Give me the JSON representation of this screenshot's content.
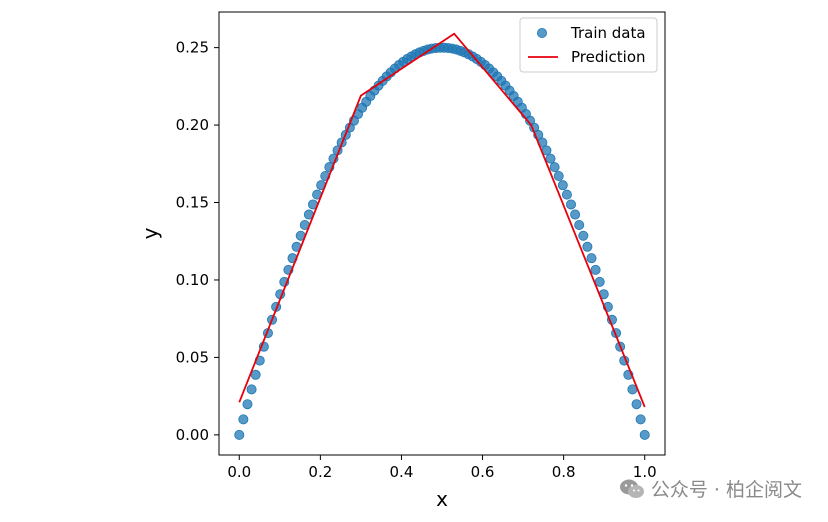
{
  "chart_data": {
    "type": "scatter",
    "xlabel": "x",
    "ylabel": "y",
    "xlim": [
      -0.05,
      1.05
    ],
    "ylim": [
      -0.013,
      0.273
    ],
    "xticks": [
      0.0,
      0.2,
      0.4,
      0.6,
      0.8,
      1.0
    ],
    "xtick_labels": [
      "0.0",
      "0.2",
      "0.4",
      "0.6",
      "0.8",
      "1.0"
    ],
    "yticks": [
      0.0,
      0.05,
      0.1,
      0.15,
      0.2,
      0.25
    ],
    "ytick_labels": [
      "0.00",
      "0.05",
      "0.10",
      "0.15",
      "0.20",
      "0.25"
    ],
    "legend_position": "top-right",
    "series": [
      {
        "name": "Train data",
        "kind": "scatter",
        "color": "#1f77b4",
        "function": "x*(1-x)",
        "n_points": 100,
        "x_start": 0.0,
        "x_end": 1.0
      },
      {
        "name": "Prediction",
        "kind": "line",
        "color": "#e8000b",
        "x": [
          0.0,
          0.3,
          0.53,
          0.72,
          1.0
        ],
        "y": [
          0.021,
          0.219,
          0.259,
          0.2,
          0.018
        ]
      }
    ]
  },
  "watermark": {
    "text": "公众号 · 柏企阅文",
    "icon": "wechat-icon"
  }
}
